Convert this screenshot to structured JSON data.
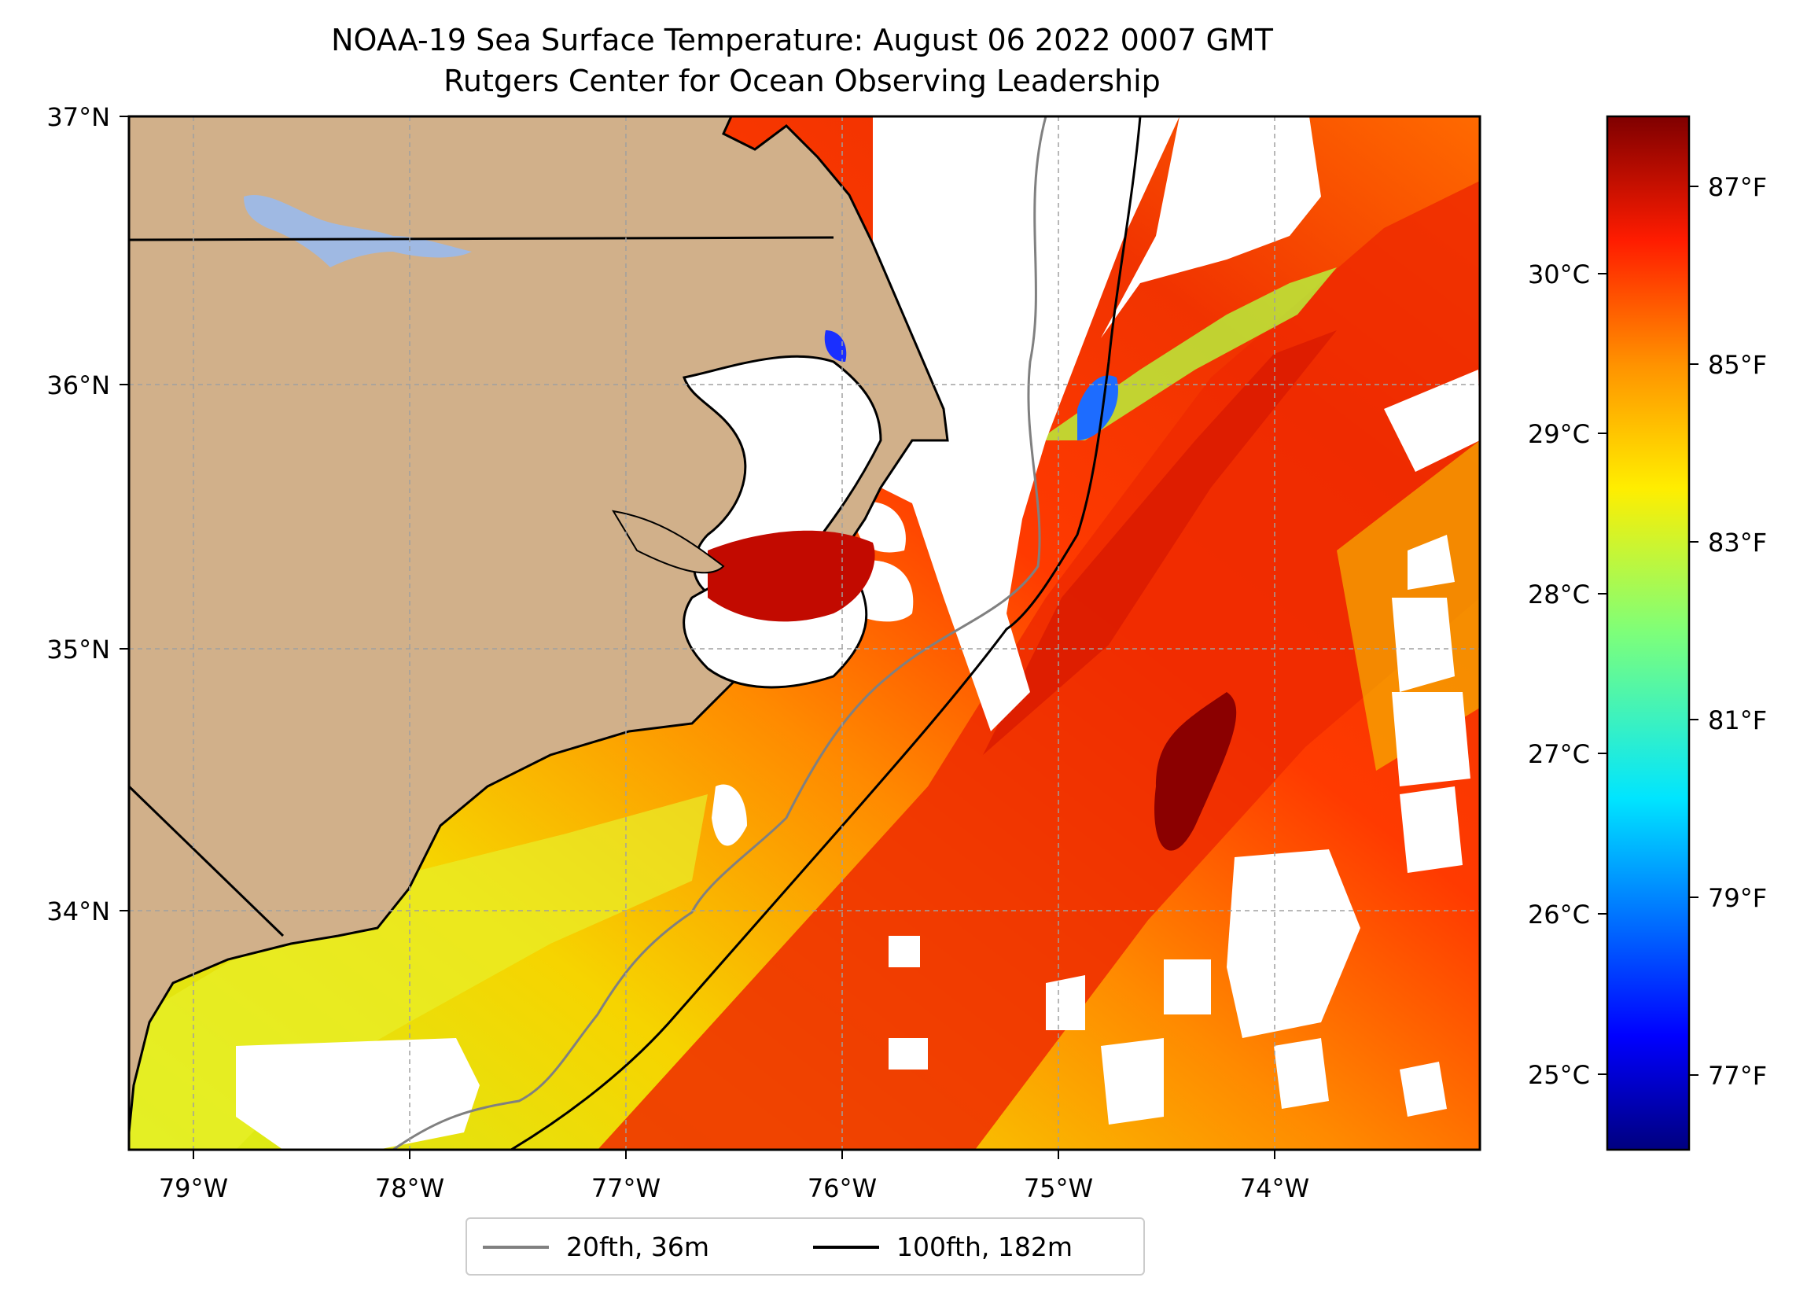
{
  "title": {
    "line1": "NOAA-19 Sea Surface Temperature: August 06 2022 0007 GMT",
    "line2": "Rutgers Center for Ocean Observing Leadership"
  },
  "map": {
    "lon_range": [
      -79.3,
      -73.05
    ],
    "lat_range": [
      33.1,
      37.0
    ],
    "lon_ticks": [
      "79°W",
      "78°W",
      "77°W",
      "76°W",
      "75°W",
      "74°W"
    ],
    "lat_ticks": [
      "37°N",
      "36°N",
      "35°N",
      "34°N"
    ],
    "land_color": "#d1b08a",
    "lake_color": "#9fb9e3",
    "grid": true
  },
  "colorbar": {
    "colormap": "jet",
    "range_f": [
      75.9,
      88.0
    ],
    "celsius_ticks": [
      "30°C",
      "29°C",
      "28°C",
      "27°C",
      "26°C",
      "25°C"
    ],
    "fahrenheit_ticks": [
      "87°F",
      "85°F",
      "83°F",
      "81°F",
      "79°F",
      "77°F"
    ]
  },
  "legend": {
    "items": [
      {
        "label": "20fth, 36m",
        "color": "#808080"
      },
      {
        "label": "100fth, 182m",
        "color": "#000000"
      }
    ]
  }
}
